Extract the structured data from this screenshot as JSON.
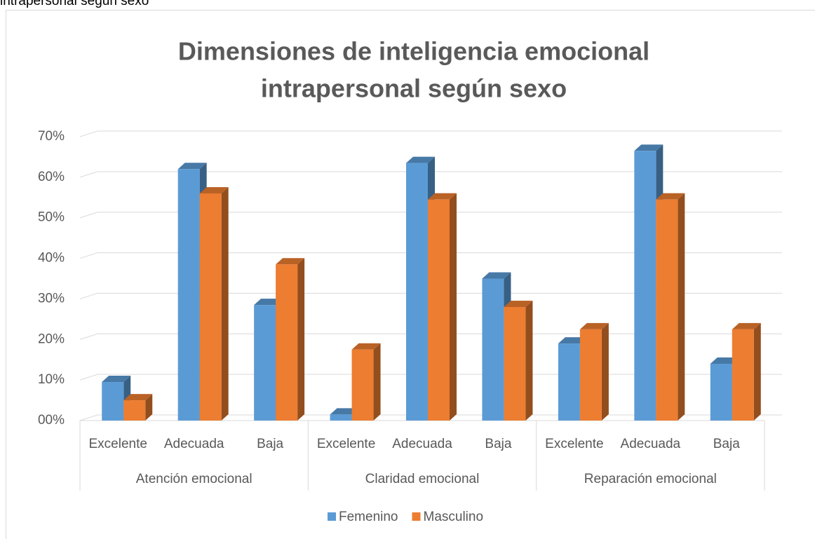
{
  "caption": "intrapersonal según sexo",
  "chart_data": {
    "type": "bar3d",
    "title": [
      "Dimensiones de inteligencia emocional",
      "intrapersonal según sexo"
    ],
    "groups": [
      {
        "name": "Atención emocional",
        "categories": [
          "Excelente",
          "Adecuada",
          "Baja"
        ]
      },
      {
        "name": "Claridad emocional",
        "categories": [
          "Excelente",
          "Adecuada",
          "Baja"
        ]
      },
      {
        "name": "Reparación emocional",
        "categories": [
          "Excelente",
          "Adecuada",
          "Baja"
        ]
      }
    ],
    "series": [
      {
        "name": "Femenino",
        "color": "#5b9bd5",
        "values": [
          9.5,
          62,
          28.5,
          1.5,
          63.5,
          35,
          19,
          66.5,
          14
        ]
      },
      {
        "name": "Masculino",
        "color": "#ed7d31",
        "values": [
          5,
          56,
          38.5,
          17.5,
          54.5,
          28,
          22.5,
          54.5,
          22.5
        ]
      }
    ],
    "ylim": [
      0,
      70
    ],
    "yticks": [
      {
        "value": 0,
        "label": "00%"
      },
      {
        "value": 10,
        "label": "10%"
      },
      {
        "value": 20,
        "label": "20%"
      },
      {
        "value": 30,
        "label": "30%"
      },
      {
        "value": 40,
        "label": "40%"
      },
      {
        "value": 50,
        "label": "50%"
      },
      {
        "value": 60,
        "label": "60%"
      },
      {
        "value": 70,
        "label": "70%"
      }
    ],
    "grid": true,
    "legend": "bottom"
  }
}
